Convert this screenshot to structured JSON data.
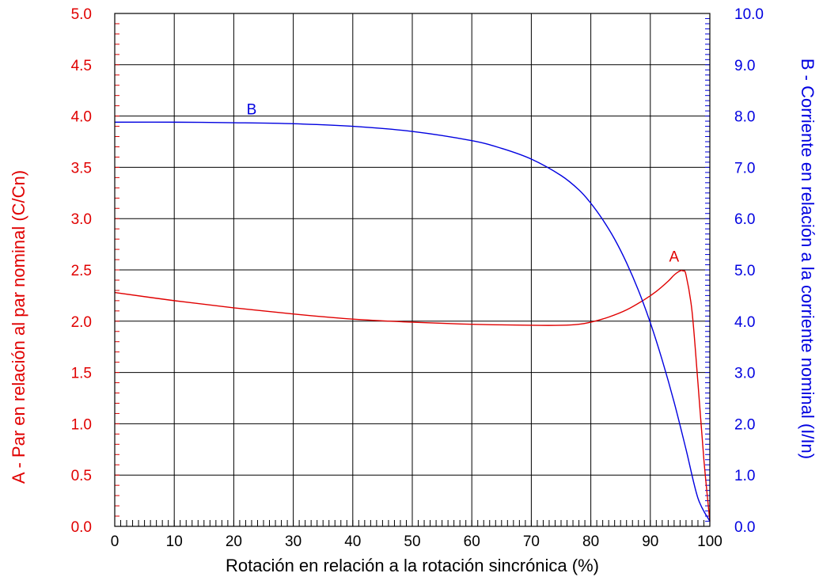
{
  "chart_data": {
    "type": "line",
    "xlabel": "Rotación en relación a la rotación sincrónica (%)",
    "ylabel_left": "A - Par en relación al par nominal (C/Cn)",
    "ylabel_right": "B - Corriente en relación a la corriente nominal (I/In)",
    "xlim": [
      0,
      100
    ],
    "ylim_left": [
      0,
      5
    ],
    "ylim_right": [
      0,
      10
    ],
    "x_ticks": [
      0,
      10,
      20,
      30,
      40,
      50,
      60,
      70,
      80,
      90,
      100
    ],
    "x_tick_labels": [
      "0",
      "10",
      "20",
      "30",
      "40",
      "50",
      "60",
      "70",
      "80",
      "90",
      "100"
    ],
    "y_left_ticks": [
      0,
      0.5,
      1,
      1.5,
      2,
      2.5,
      3,
      3.5,
      4,
      4.5,
      5
    ],
    "y_left_tick_labels": [
      "0.0",
      "0.5",
      "1.0",
      "1.5",
      "2.0",
      "2.5",
      "3.0",
      "3.5",
      "4.0",
      "4.5",
      "5.0"
    ],
    "y_right_ticks": [
      0,
      1,
      2,
      3,
      4,
      5,
      6,
      7,
      8,
      9,
      10
    ],
    "y_right_tick_labels": [
      "0.0",
      "1.0",
      "2.0",
      "3.0",
      "4.0",
      "5.0",
      "6.0",
      "7.0",
      "8.0",
      "9.0",
      "10.0"
    ],
    "grid": true,
    "colors": {
      "A": "#e00000",
      "B": "#0000e0",
      "grid": "#000000"
    },
    "series": [
      {
        "name": "A",
        "axis": "left",
        "label_at": [
          94,
          2.58
        ],
        "x": [
          0,
          10,
          20,
          30,
          40,
          50,
          60,
          70,
          75,
          78,
          80,
          83,
          86,
          89,
          91,
          93,
          94,
          95,
          95.5,
          96,
          97,
          98,
          99,
          100
        ],
        "y": [
          2.28,
          2.2,
          2.13,
          2.07,
          2.02,
          1.99,
          1.97,
          1.96,
          1.96,
          1.97,
          1.99,
          2.04,
          2.11,
          2.21,
          2.29,
          2.39,
          2.45,
          2.49,
          2.49,
          2.45,
          2.1,
          1.4,
          0.65,
          0.05
        ]
      },
      {
        "name": "B",
        "axis": "right",
        "label_at": [
          23,
          8.03
        ],
        "x": [
          0,
          10,
          20,
          30,
          40,
          50,
          60,
          65,
          70,
          75,
          78,
          80,
          82,
          84,
          86,
          88,
          90,
          92,
          94,
          96,
          98,
          100
        ],
        "y": [
          7.88,
          7.88,
          7.87,
          7.85,
          7.8,
          7.7,
          7.52,
          7.37,
          7.16,
          6.84,
          6.56,
          6.3,
          5.98,
          5.6,
          5.14,
          4.6,
          3.97,
          3.24,
          2.42,
          1.5,
          0.55,
          0.1
        ]
      }
    ]
  }
}
